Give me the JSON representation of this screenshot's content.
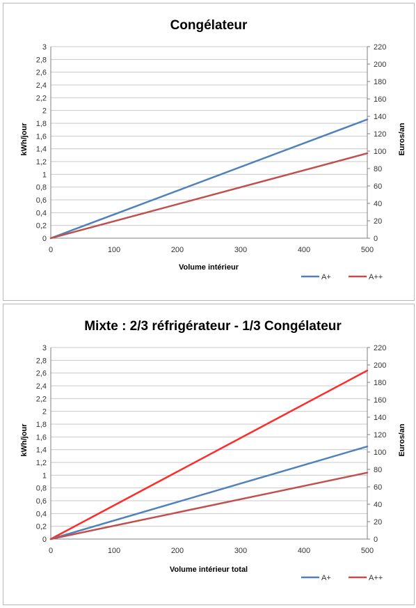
{
  "colors": {
    "aplus": "#4f81bd",
    "aplusplus": "#c0504d",
    "mixte": "#ff2a2a",
    "grid": "#c8c8c8",
    "axis": "#7f7f7f"
  },
  "chart_data": [
    {
      "type": "line",
      "title": "Congélateur",
      "xlabel": "Volume intérieur",
      "ylabel": "kWh/jour",
      "y2label": "Euros/an",
      "xlim": [
        0,
        500
      ],
      "ylim": [
        0,
        3
      ],
      "y2lim": [
        0,
        220
      ],
      "x_ticks": [
        "0",
        "100",
        "200",
        "300",
        "400",
        "500"
      ],
      "y_ticks": [
        "0",
        "0,2",
        "0,4",
        "0,6",
        "0,8",
        "1",
        "1,2",
        "1,4",
        "1,6",
        "1,8",
        "2",
        "2,2",
        "2,4",
        "2,6",
        "2,8",
        "3"
      ],
      "y2_ticks": [
        "0",
        "20",
        "40",
        "60",
        "80",
        "100",
        "120",
        "140",
        "160",
        "180",
        "200",
        "220"
      ],
      "legend_position": "bottom-right",
      "series": [
        {
          "name": "A+",
          "color_key": "aplus",
          "x": [
            0,
            500
          ],
          "y": [
            0,
            1.86
          ],
          "show_in_legend": true
        },
        {
          "name": "A++",
          "color_key": "aplusplus",
          "x": [
            0,
            500
          ],
          "y": [
            0,
            1.33
          ],
          "show_in_legend": true
        }
      ]
    },
    {
      "type": "line",
      "title": "Mixte : 2/3 réfrigérateur - 1/3 Congélateur",
      "xlabel": "Volume intérieur total",
      "ylabel": "kWh/jour",
      "y2label": "Euros/an",
      "xlim": [
        0,
        500
      ],
      "ylim": [
        0,
        3
      ],
      "y2lim": [
        0,
        220
      ],
      "x_ticks": [
        "0",
        "100",
        "200",
        "300",
        "400",
        "500"
      ],
      "y_ticks": [
        "0",
        "0,2",
        "0,4",
        "0,6",
        "0,8",
        "1",
        "1,2",
        "1,4",
        "1,6",
        "1,8",
        "2",
        "2,2",
        "2,4",
        "2,6",
        "2,8",
        "3"
      ],
      "y2_ticks": [
        "0",
        "20",
        "40",
        "60",
        "80",
        "100",
        "120",
        "140",
        "160",
        "180",
        "200",
        "220"
      ],
      "legend_position": "bottom-right",
      "series": [
        {
          "color_key": "mixte",
          "x": [
            0,
            500
          ],
          "y": [
            0,
            2.64
          ],
          "show_in_legend": false
        },
        {
          "name": "A+",
          "color_key": "aplus",
          "x": [
            0,
            500
          ],
          "y": [
            0,
            1.45
          ],
          "show_in_legend": true
        },
        {
          "name": "A++",
          "color_key": "aplusplus",
          "x": [
            0,
            500
          ],
          "y": [
            0,
            1.04
          ],
          "show_in_legend": true
        }
      ]
    }
  ]
}
